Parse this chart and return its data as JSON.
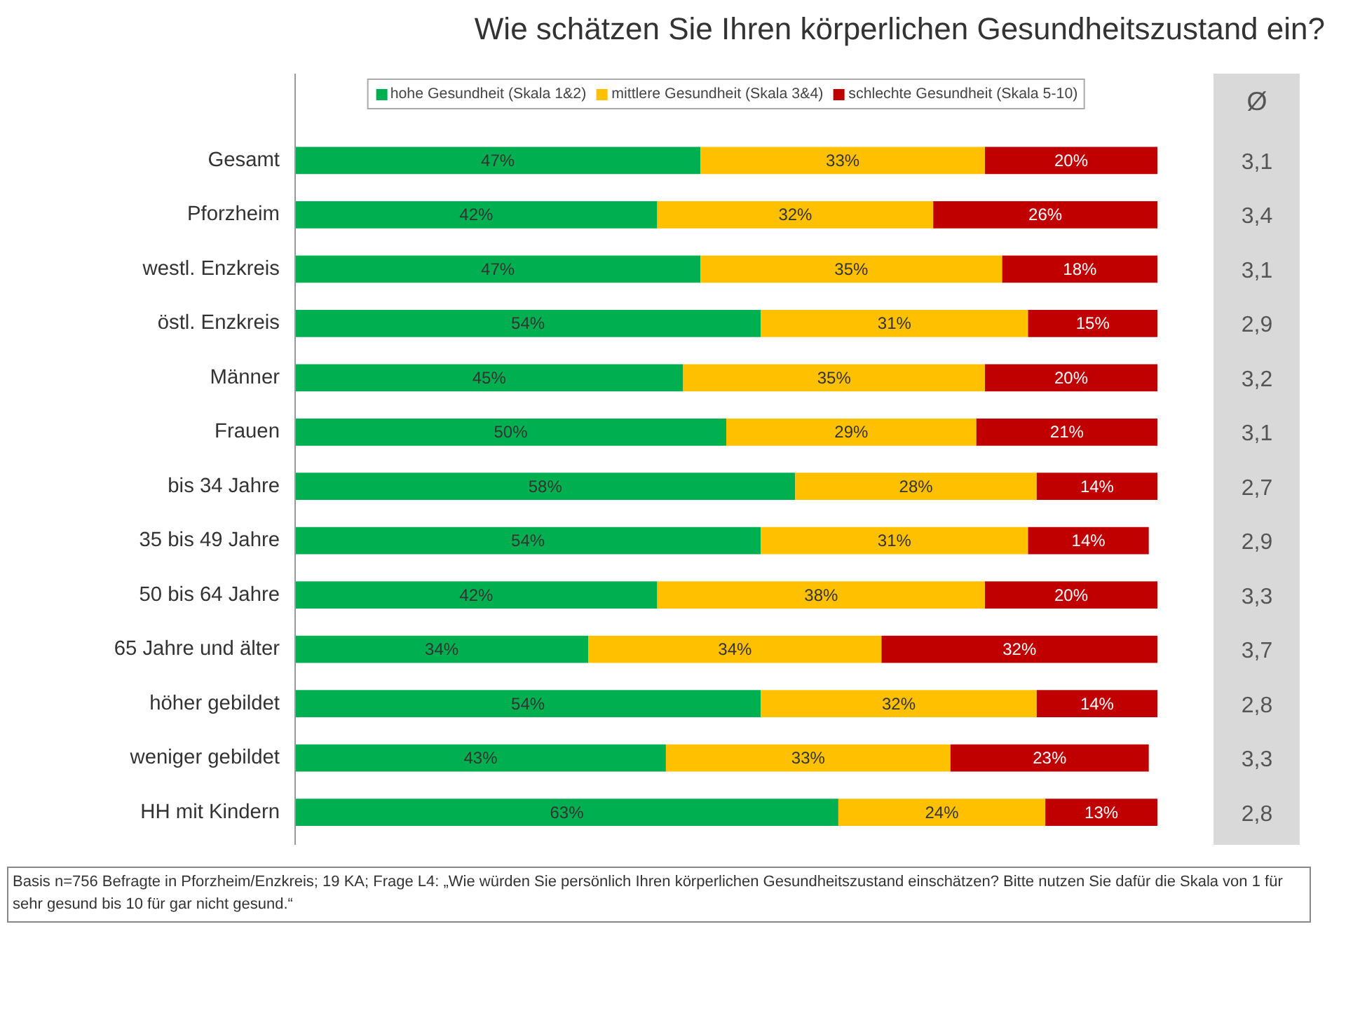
{
  "chart_data": {
    "type": "bar",
    "orientation": "horizontal",
    "stacked": true,
    "legend": "top",
    "grid": false,
    "title": "Wie schätzen Sie Ihren körperlichen Gesundheitszustand ein?",
    "categories": [
      "Gesamt",
      "Pforzheim",
      "westl. Enzkreis",
      "östl. Enzkreis",
      "Männer",
      "Frauen",
      "bis 34 Jahre",
      "35 bis 49 Jahre",
      "50 bis 64 Jahre",
      "65 Jahre und älter",
      "höher gebildet",
      "weniger gebildet",
      "HH mit Kindern"
    ],
    "series": [
      {
        "name": "hohe Gesundheit (Skala 1&2)",
        "color": "#00b050",
        "values": [
          47,
          42,
          47,
          54,
          45,
          50,
          58,
          54,
          42,
          34,
          54,
          43,
          63
        ],
        "value_labels": [
          "47%",
          "42%",
          "47%",
          "54%",
          "45%",
          "50%",
          "58%",
          "54%",
          "42%",
          "34%",
          "54%",
          "43%",
          "63%"
        ]
      },
      {
        "name": "mittlere Gesundheit (Skala 3&4)",
        "color": "#ffc000",
        "values": [
          33,
          32,
          35,
          31,
          35,
          29,
          28,
          31,
          38,
          34,
          32,
          33,
          24
        ],
        "value_labels": [
          "33%",
          "32%",
          "35%",
          "31%",
          "35%",
          "29%",
          "28%",
          "31%",
          "38%",
          "34%",
          "32%",
          "33%",
          "24%"
        ]
      },
      {
        "name": "schlechte Gesundheit (Skala 5-10)",
        "color": "#c00000",
        "values": [
          20,
          26,
          18,
          15,
          20,
          21,
          14,
          14,
          20,
          32,
          14,
          23,
          13
        ],
        "value_labels": [
          "20%",
          "26%",
          "18%",
          "15%",
          "20%",
          "21%",
          "14%",
          "14%",
          "20%",
          "32%",
          "14%",
          "23%",
          "13%"
        ]
      }
    ],
    "annotations": [
      "Ø",
      "3,1",
      "3,4",
      "3,1",
      "2,9",
      "3,2",
      "3,1",
      "2,7",
      "2,9",
      "3,3",
      "3,7",
      "2,8",
      "3,3",
      "2,8",
      "Basis n=756 Befragte in Pforzheim/Enzkreis; 19 KA; Frage L4: „Wie würden Sie persönlich Ihren körperlichen Gesundheitszustand einschätzen? Bitte nutzen Sie dafür die Skala von 1 für sehr gesund bis 10 für gar nicht gesund.“"
    ]
  }
}
